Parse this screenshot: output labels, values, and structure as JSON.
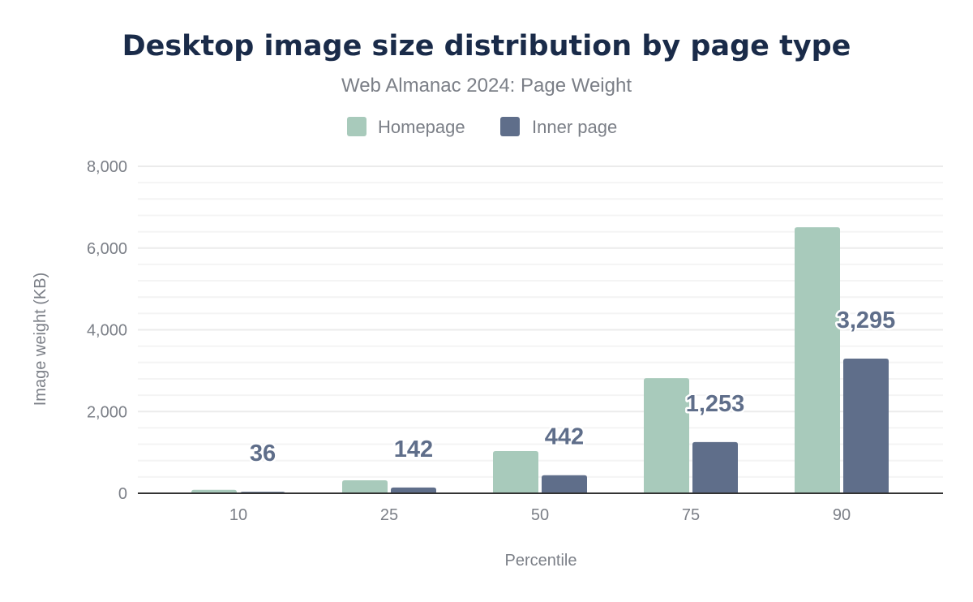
{
  "chart_data": {
    "type": "bar",
    "title": "Desktop image size distribution by page type",
    "subtitle": "Web Almanac 2024: Page Weight",
    "xlabel": "Percentile",
    "ylabel": "Image weight (KB)",
    "categories": [
      "10",
      "25",
      "50",
      "75",
      "90"
    ],
    "series": [
      {
        "name": "Homepage",
        "color": "#a8cabb",
        "values": [
          85,
          317,
          1032,
          2817,
          6508
        ],
        "data_labels": false
      },
      {
        "name": "Inner page",
        "color": "#5f6e8a",
        "values": [
          36,
          142,
          442,
          1253,
          3295
        ],
        "data_labels": true
      }
    ],
    "ylim": [
      0,
      8000
    ],
    "yticks": [
      0,
      2000,
      4000,
      6000,
      8000
    ],
    "ytick_labels": [
      "0",
      "2,000",
      "4,000",
      "6,000",
      "8,000"
    ],
    "minor_grid_step": 400,
    "grid": true,
    "legend_position": "top-center"
  }
}
